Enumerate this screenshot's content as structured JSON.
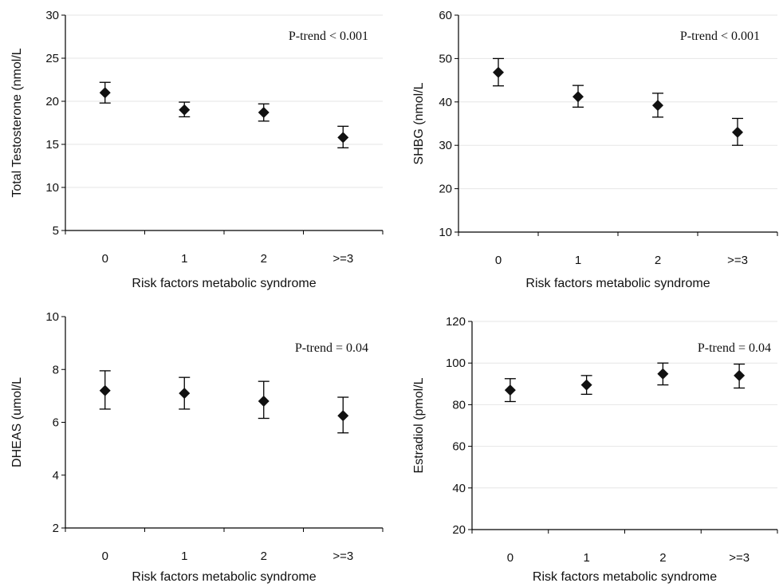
{
  "chart_data": [
    {
      "type": "scatter",
      "title": "",
      "xlabel": "Risk factors metabolic syndrome",
      "ylabel": "Total Testosterone (nmol/L",
      "annotation": "P-trend < 0.001",
      "categories": [
        "0",
        "1",
        "2",
        ">=3"
      ],
      "yticks": [
        "5",
        "10",
        "15",
        "20",
        "25",
        "30"
      ],
      "ylim": [
        5,
        30
      ],
      "grid": true,
      "legend": "none",
      "series": [
        {
          "values": [
            21.0,
            19.0,
            18.7,
            15.8
          ],
          "lower": [
            19.8,
            18.2,
            17.7,
            14.6
          ],
          "upper": [
            22.2,
            19.9,
            19.7,
            17.1
          ]
        }
      ]
    },
    {
      "type": "scatter",
      "title": "",
      "xlabel": "Risk factors metabolic syndrome",
      "ylabel": "SHBG (nmol/L",
      "annotation": "P-trend < 0.001",
      "categories": [
        "0",
        "1",
        "2",
        ">=3"
      ],
      "yticks": [
        "10",
        "20",
        "30",
        "40",
        "50",
        "60"
      ],
      "ylim": [
        10,
        60
      ],
      "grid": true,
      "legend": "none",
      "series": [
        {
          "values": [
            46.8,
            41.2,
            39.2,
            33.0
          ],
          "lower": [
            43.7,
            38.8,
            36.5,
            30.0
          ],
          "upper": [
            50.0,
            43.8,
            42.0,
            36.2
          ]
        }
      ]
    },
    {
      "type": "scatter",
      "title": "",
      "xlabel": "Risk factors metabolic syndrome",
      "ylabel": "DHEAS (umol/L",
      "annotation": "P-trend = 0.04",
      "categories": [
        "0",
        "1",
        "2",
        ">=3"
      ],
      "yticks": [
        "2",
        "4",
        "6",
        "8",
        "10"
      ],
      "ylim": [
        2,
        10
      ],
      "grid": false,
      "legend": "none",
      "series": [
        {
          "values": [
            7.2,
            7.1,
            6.8,
            6.25
          ],
          "lower": [
            6.5,
            6.5,
            6.15,
            5.6
          ],
          "upper": [
            7.95,
            7.7,
            7.55,
            6.95
          ]
        }
      ]
    },
    {
      "type": "scatter",
      "title": "",
      "xlabel": "Risk factors metabolic syndrome",
      "ylabel": "Estradiol (pmol/L",
      "annotation": "P-trend = 0.04",
      "categories": [
        "0",
        "1",
        "2",
        ">=3"
      ],
      "yticks": [
        "20",
        "40",
        "60",
        "80",
        "100",
        "120"
      ],
      "ylim": [
        20,
        120
      ],
      "grid": true,
      "legend": "none",
      "series": [
        {
          "values": [
            87.0,
            89.5,
            94.8,
            94.0
          ],
          "lower": [
            81.5,
            85.0,
            89.5,
            88.0
          ],
          "upper": [
            92.5,
            94.0,
            100.0,
            99.5
          ]
        }
      ]
    }
  ]
}
